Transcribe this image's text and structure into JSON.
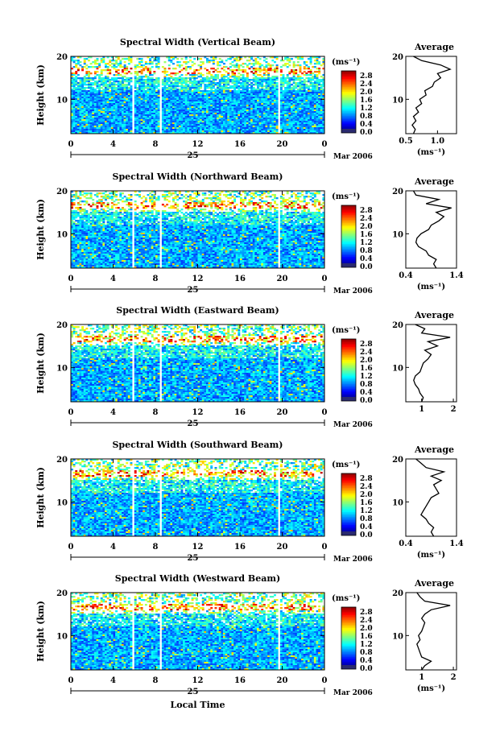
{
  "figure": {
    "x_axis_label": "Local Time",
    "date_day": "25",
    "date_month_year": "Mar 2006"
  },
  "chart_data": [
    {
      "type": "heatmap",
      "title": "Spectral Width (Vertical Beam)",
      "ylabel": "Height (km)",
      "xlim": [
        0,
        24
      ],
      "ylim": [
        2,
        20
      ],
      "x_ticks": [
        "0",
        "4",
        "8",
        "12",
        "16",
        "20",
        "0"
      ],
      "y_ticks": [
        "10",
        "20"
      ],
      "colorbar": {
        "unit": "(ms⁻¹)",
        "ticks": [
          "2.8",
          "2.4",
          "2.0",
          "1.6",
          "1.2",
          "0.8",
          "0.4",
          "0.0"
        ]
      },
      "average": {
        "title": "Average",
        "xlabel": "(ms⁻¹)",
        "x_ticks": [
          "0.5",
          "1.0"
        ],
        "y_ticks": [
          "10",
          "20"
        ],
        "xlim": [
          0.5,
          1.3
        ],
        "profile": [
          [
            0.62,
            2
          ],
          [
            0.65,
            3
          ],
          [
            0.6,
            4
          ],
          [
            0.66,
            5
          ],
          [
            0.62,
            6
          ],
          [
            0.7,
            7
          ],
          [
            0.66,
            8
          ],
          [
            0.75,
            9
          ],
          [
            0.72,
            10
          ],
          [
            0.82,
            11
          ],
          [
            0.8,
            12
          ],
          [
            0.92,
            13
          ],
          [
            0.95,
            14
          ],
          [
            1.05,
            15
          ],
          [
            1.0,
            16
          ],
          [
            1.2,
            17
          ],
          [
            1.05,
            18
          ],
          [
            0.75,
            19
          ],
          [
            0.62,
            20
          ]
        ]
      }
    },
    {
      "type": "heatmap",
      "title": "Spectral Width (Northward Beam)",
      "ylabel": "Height (km)",
      "xlim": [
        0,
        24
      ],
      "ylim": [
        2,
        20
      ],
      "x_ticks": [
        "0",
        "4",
        "8",
        "12",
        "16",
        "20",
        "0"
      ],
      "y_ticks": [
        "10",
        "20"
      ],
      "colorbar": {
        "unit": "(ms⁻¹)",
        "ticks": [
          "2.8",
          "2.4",
          "2.0",
          "1.6",
          "1.2",
          "0.8",
          "0.4",
          "0.0"
        ]
      },
      "average": {
        "title": "Average",
        "xlabel": "(ms⁻¹)",
        "x_ticks": [
          "0.4",
          "1.4"
        ],
        "y_ticks": [
          "10",
          "20"
        ],
        "xlim": [
          0.4,
          1.4
        ],
        "profile": [
          [
            1.0,
            2
          ],
          [
            0.95,
            3
          ],
          [
            1.0,
            4
          ],
          [
            0.85,
            5
          ],
          [
            0.8,
            6
          ],
          [
            0.65,
            7
          ],
          [
            0.6,
            8
          ],
          [
            0.62,
            9
          ],
          [
            0.7,
            10
          ],
          [
            0.85,
            11
          ],
          [
            0.9,
            12
          ],
          [
            1.05,
            13
          ],
          [
            1.15,
            14
          ],
          [
            1.0,
            15
          ],
          [
            1.3,
            16
          ],
          [
            0.8,
            17
          ],
          [
            1.05,
            18
          ],
          [
            0.6,
            19
          ],
          [
            0.55,
            20
          ]
        ]
      }
    },
    {
      "type": "heatmap",
      "title": "Spectral Width (Eastward Beam)",
      "ylabel": "Height (km)",
      "xlim": [
        0,
        24
      ],
      "ylim": [
        2,
        20
      ],
      "x_ticks": [
        "0",
        "4",
        "8",
        "12",
        "16",
        "20",
        "0"
      ],
      "y_ticks": [
        "10",
        "20"
      ],
      "colorbar": {
        "unit": "(ms⁻¹)",
        "ticks": [
          "2.8",
          "2.4",
          "2.0",
          "1.6",
          "1.2",
          "0.8",
          "0.4",
          "0.0"
        ]
      },
      "average": {
        "title": "Average",
        "xlabel": "",
        "x_ticks": [
          "1",
          "2"
        ],
        "y_ticks": [
          "10",
          "20"
        ],
        "xlim": [
          0.5,
          2.1
        ],
        "profile": [
          [
            1.0,
            2
          ],
          [
            1.05,
            3
          ],
          [
            0.95,
            4
          ],
          [
            0.9,
            5
          ],
          [
            0.8,
            6
          ],
          [
            0.75,
            7
          ],
          [
            0.8,
            8
          ],
          [
            0.95,
            9
          ],
          [
            1.0,
            10
          ],
          [
            1.05,
            11
          ],
          [
            1.2,
            12
          ],
          [
            1.3,
            13
          ],
          [
            1.1,
            14
          ],
          [
            1.5,
            15
          ],
          [
            1.2,
            16
          ],
          [
            1.9,
            17
          ],
          [
            1.0,
            18
          ],
          [
            1.1,
            19
          ],
          [
            0.8,
            20
          ]
        ]
      }
    },
    {
      "type": "heatmap",
      "title": "Spectral Width (Southward Beam)",
      "ylabel": "Height (km)",
      "xlim": [
        0,
        24
      ],
      "ylim": [
        2,
        20
      ],
      "x_ticks": [
        "0",
        "4",
        "8",
        "12",
        "16",
        "20",
        "0"
      ],
      "y_ticks": [
        "10",
        "20"
      ],
      "colorbar": {
        "unit": "(ms⁻¹)",
        "ticks": [
          "2.8",
          "2.4",
          "2.0",
          "1.6",
          "1.2",
          "0.8",
          "0.4",
          "0.0"
        ]
      },
      "average": {
        "title": "Average",
        "xlabel": "(ms⁻¹)",
        "x_ticks": [
          "0.4",
          "1.4"
        ],
        "y_ticks": [
          "10",
          "20"
        ],
        "xlim": [
          0.4,
          1.4
        ],
        "profile": [
          [
            0.95,
            2
          ],
          [
            0.9,
            3
          ],
          [
            0.95,
            4
          ],
          [
            0.85,
            5
          ],
          [
            0.8,
            6
          ],
          [
            0.7,
            7
          ],
          [
            0.75,
            8
          ],
          [
            0.8,
            9
          ],
          [
            0.85,
            10
          ],
          [
            0.9,
            11
          ],
          [
            1.05,
            12
          ],
          [
            1.0,
            13
          ],
          [
            0.95,
            14
          ],
          [
            1.1,
            15
          ],
          [
            0.9,
            16
          ],
          [
            1.15,
            17
          ],
          [
            0.8,
            18
          ],
          [
            0.7,
            19
          ],
          [
            0.6,
            20
          ]
        ]
      }
    },
    {
      "type": "heatmap",
      "title": "Spectral Width (Westward Beam)",
      "ylabel": "Height (km)",
      "xlim": [
        0,
        24
      ],
      "ylim": [
        2,
        20
      ],
      "x_ticks": [
        "0",
        "4",
        "8",
        "12",
        "16",
        "20",
        "0"
      ],
      "y_ticks": [
        "10",
        "20"
      ],
      "colorbar": {
        "unit": "(ms⁻¹)",
        "ticks": [
          "2.8",
          "2.4",
          "2.0",
          "1.6",
          "1.2",
          "0.8",
          "0.4",
          "0.0"
        ]
      },
      "average": {
        "title": "Average",
        "xlabel": "(ms⁻¹)",
        "x_ticks": [
          "1",
          "2"
        ],
        "y_ticks": [
          "10",
          "20"
        ],
        "xlim": [
          0.5,
          2.1
        ],
        "profile": [
          [
            1.0,
            2
          ],
          [
            1.1,
            3
          ],
          [
            1.3,
            4
          ],
          [
            1.0,
            5
          ],
          [
            0.95,
            6
          ],
          [
            0.9,
            7
          ],
          [
            0.85,
            8
          ],
          [
            0.95,
            9
          ],
          [
            0.9,
            10
          ],
          [
            1.0,
            11
          ],
          [
            1.05,
            12
          ],
          [
            1.1,
            13
          ],
          [
            1.0,
            14
          ],
          [
            1.1,
            15
          ],
          [
            1.3,
            16
          ],
          [
            1.9,
            17
          ],
          [
            1.1,
            18
          ],
          [
            0.95,
            19
          ],
          [
            0.85,
            20
          ]
        ]
      }
    }
  ]
}
